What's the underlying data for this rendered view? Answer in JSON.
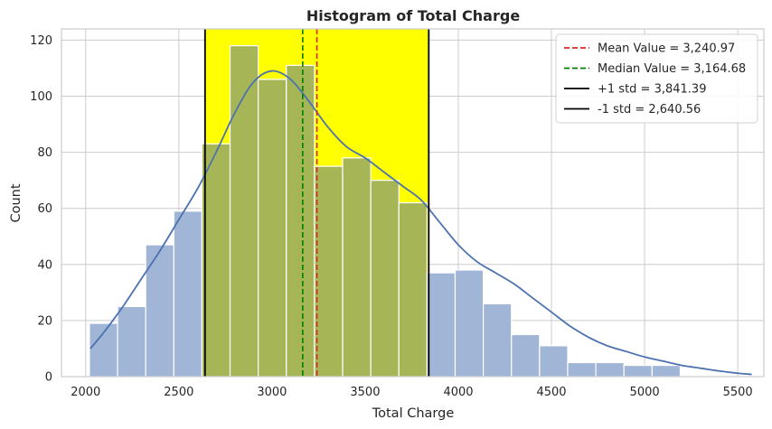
{
  "chart_data": {
    "type": "bar",
    "title": "Histogram of Total Charge",
    "xlabel": "Total Charge",
    "ylabel": "Count",
    "xlim": [
      1870,
      5640
    ],
    "ylim": [
      0,
      124
    ],
    "xticks": [
      2000,
      2500,
      3000,
      3500,
      4000,
      4500,
      5000,
      5500
    ],
    "yticks": [
      0,
      20,
      40,
      60,
      80,
      100,
      120
    ],
    "grid": true,
    "legend_position": "top-right",
    "bin_start": 2020,
    "bin_width": 151,
    "counts": [
      19,
      25,
      47,
      59,
      83,
      118,
      106,
      111,
      75,
      78,
      70,
      62,
      37,
      38,
      26,
      15,
      11,
      5,
      5,
      4,
      4
    ],
    "kde": {
      "x": [
        2025,
        2100,
        2200,
        2300,
        2400,
        2500,
        2600,
        2700,
        2800,
        2900,
        3000,
        3100,
        3200,
        3300,
        3400,
        3500,
        3600,
        3700,
        3800,
        3900,
        4000,
        4100,
        4200,
        4300,
        4400,
        4500,
        4600,
        4700,
        4800,
        4900,
        5000,
        5100,
        5200,
        5300,
        5400,
        5500,
        5575
      ],
      "y": [
        10,
        16,
        25,
        35,
        45,
        56,
        67,
        80,
        94,
        105,
        109,
        106,
        98,
        89,
        82,
        78,
        73,
        68,
        63,
        55,
        47,
        41,
        37,
        33,
        28,
        23,
        18,
        14,
        11,
        9,
        7,
        5.5,
        4,
        3,
        2,
        1.2,
        0.8
      ]
    },
    "band": {
      "from": 2640.56,
      "to": 3841.39,
      "color": "#ffff00"
    },
    "reference_lines": [
      {
        "label": "Mean Value = 3,240.97",
        "x": 3240.97,
        "color": "#d62728",
        "style": "dashed"
      },
      {
        "label": "Median Value = 3,164.68",
        "x": 3164.68,
        "color": "#008000",
        "style": "dashed"
      },
      {
        "label": "+1 std = 3,841.39",
        "x": 3841.39,
        "color": "#000000",
        "style": "solid"
      },
      {
        "label": "-1 std = 2,640.56",
        "x": 2640.56,
        "color": "#000000",
        "style": "solid"
      }
    ],
    "colors": {
      "bar": "#a1b5d7",
      "bar_in_band": "#a6b657",
      "bar_edge": "#ffffff",
      "kde": "#4c72b0",
      "grid": "#cccccc",
      "axes_edge": "#cccccc"
    }
  }
}
